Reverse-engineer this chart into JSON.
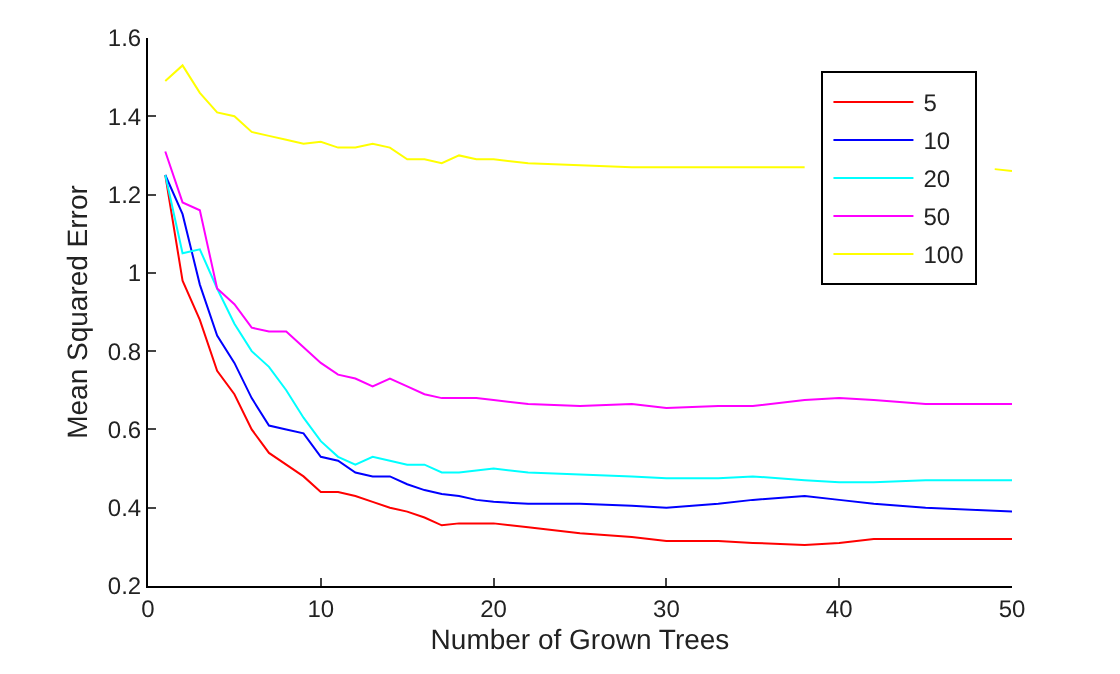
{
  "chart_data": {
    "type": "line",
    "xlabel": "Number of Grown Trees",
    "ylabel": "Mean Squared Error",
    "x": [
      1,
      2,
      3,
      4,
      5,
      6,
      7,
      8,
      9,
      10,
      11,
      12,
      13,
      14,
      15,
      16,
      17,
      18,
      19,
      20,
      22,
      25,
      28,
      30,
      33,
      35,
      38,
      40,
      42,
      45,
      50
    ],
    "series": [
      {
        "name": "5",
        "color": "#ff0000",
        "values": [
          1.25,
          0.98,
          0.88,
          0.75,
          0.69,
          0.6,
          0.54,
          0.51,
          0.48,
          0.44,
          0.44,
          0.43,
          0.415,
          0.4,
          0.39,
          0.375,
          0.355,
          0.36,
          0.36,
          0.36,
          0.35,
          0.335,
          0.325,
          0.315,
          0.315,
          0.31,
          0.305,
          0.31,
          0.32,
          0.32,
          0.32
        ]
      },
      {
        "name": "10",
        "color": "#0000ff",
        "values": [
          1.25,
          1.15,
          0.97,
          0.84,
          0.77,
          0.68,
          0.61,
          0.6,
          0.59,
          0.53,
          0.52,
          0.49,
          0.48,
          0.48,
          0.46,
          0.445,
          0.435,
          0.43,
          0.42,
          0.415,
          0.41,
          0.41,
          0.405,
          0.4,
          0.41,
          0.42,
          0.43,
          0.42,
          0.41,
          0.4,
          0.39
        ]
      },
      {
        "name": "20",
        "color": "#00ffff",
        "values": [
          1.25,
          1.05,
          1.06,
          0.96,
          0.87,
          0.8,
          0.76,
          0.7,
          0.63,
          0.57,
          0.53,
          0.51,
          0.53,
          0.52,
          0.51,
          0.51,
          0.49,
          0.49,
          0.495,
          0.5,
          0.49,
          0.485,
          0.48,
          0.475,
          0.475,
          0.48,
          0.47,
          0.465,
          0.465,
          0.47,
          0.47
        ]
      },
      {
        "name": "50",
        "color": "#ff00ff",
        "values": [
          1.31,
          1.18,
          1.16,
          0.96,
          0.92,
          0.86,
          0.85,
          0.85,
          0.81,
          0.77,
          0.74,
          0.73,
          0.71,
          0.73,
          0.71,
          0.69,
          0.68,
          0.68,
          0.68,
          0.675,
          0.665,
          0.66,
          0.665,
          0.655,
          0.66,
          0.66,
          0.675,
          0.68,
          0.675,
          0.665,
          0.665
        ]
      },
      {
        "name": "100",
        "color": "#ffff00",
        "x": [
          1,
          2,
          3,
          4,
          5,
          6,
          7,
          8,
          9,
          10,
          11,
          12,
          13,
          14,
          15,
          16,
          17,
          18,
          19,
          20,
          22,
          25,
          28,
          30,
          33,
          35,
          38,
          42,
          45,
          49,
          50
        ],
        "values": [
          1.49,
          1.53,
          1.46,
          1.41,
          1.4,
          1.36,
          1.35,
          1.34,
          1.33,
          1.335,
          1.32,
          1.32,
          1.33,
          1.32,
          1.29,
          1.29,
          1.28,
          1.3,
          1.29,
          1.29,
          1.28,
          1.275,
          1.27,
          1.27,
          1.27,
          1.27,
          1.27,
          null,
          null,
          1.265,
          1.26
        ]
      }
    ],
    "xlim": [
      0,
      50
    ],
    "xticks": [
      0,
      10,
      20,
      30,
      40,
      50
    ],
    "ylim": [
      0.2,
      1.6
    ],
    "yticks": [
      0.2,
      0.4,
      0.6,
      0.8,
      1,
      1.2,
      1.4,
      1.6
    ],
    "legend": "top right",
    "marker": "none",
    "line_style": "solid"
  }
}
